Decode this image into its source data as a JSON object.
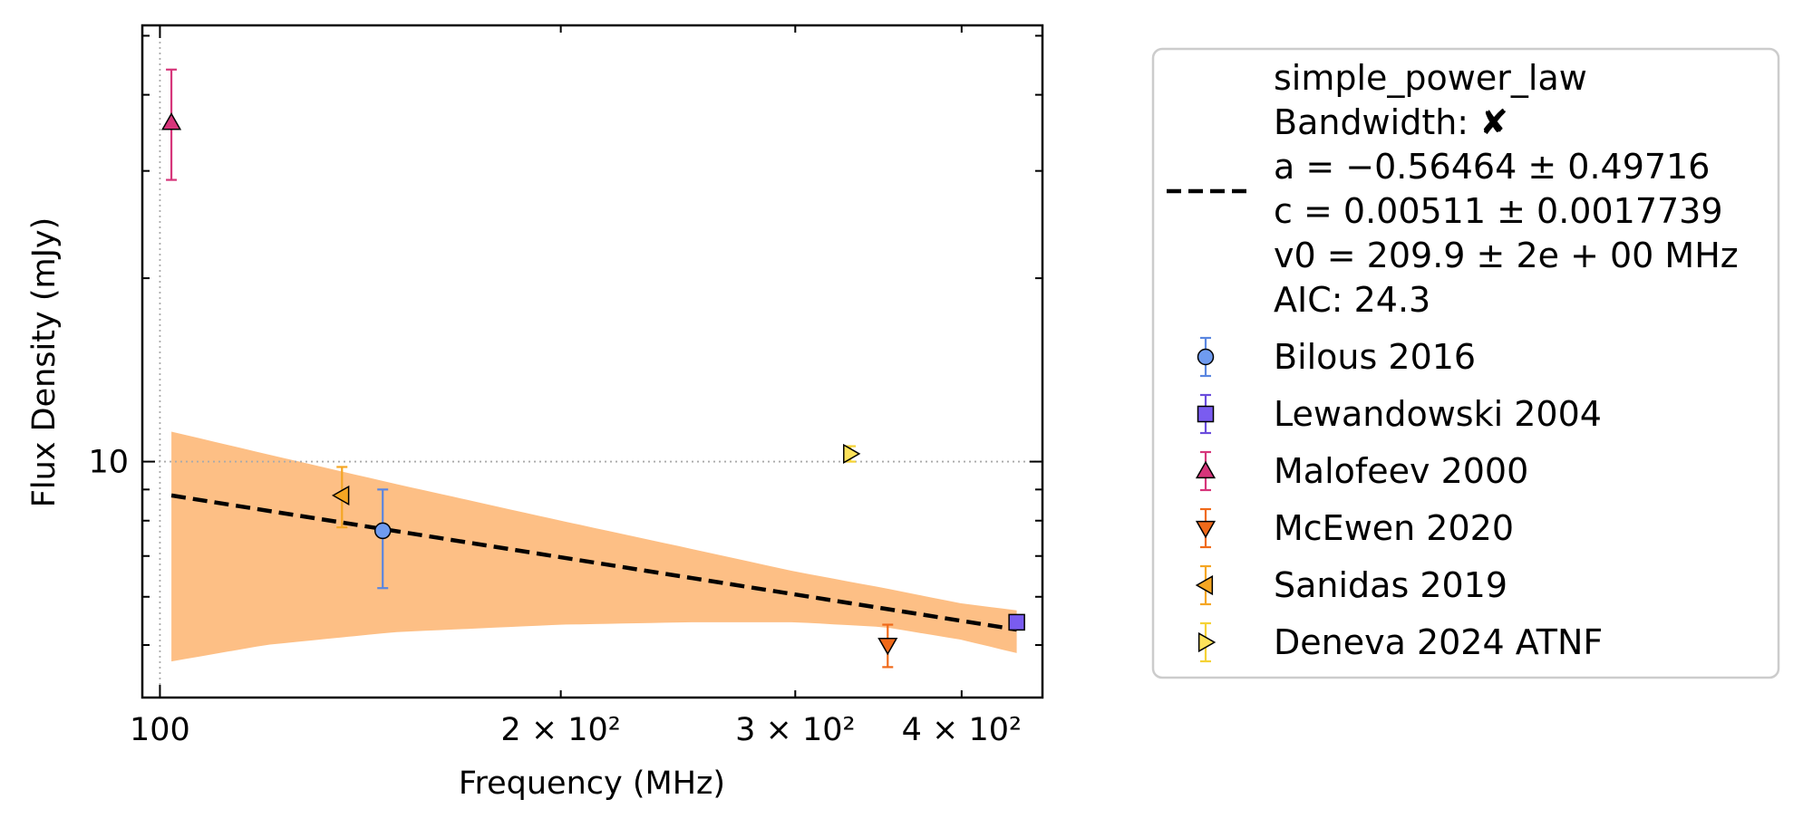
{
  "chart_data": {
    "type": "scatter",
    "title": "",
    "xlabel": "Frequency (MHz)",
    "ylabel": "Flux Density (mJy)",
    "xscale": "log",
    "yscale": "log",
    "xlim": [
      97,
      460
    ],
    "ylim": [
      4.1,
      52
    ],
    "x_tick_labels": [
      {
        "value": 100,
        "text": "100"
      },
      {
        "value": 200,
        "text": "2 × 10²"
      },
      {
        "value": 300,
        "text": "3 × 10²"
      },
      {
        "value": 400,
        "text": "4 × 10²"
      }
    ],
    "y_tick_labels": [
      {
        "value": 10,
        "text": "10"
      }
    ],
    "reference_lines": {
      "x": 100,
      "y": 10,
      "style": "dotted",
      "color": "#aaaaaa"
    },
    "fit": {
      "name": "simple_power_law",
      "style": "dashed",
      "color": "#000000",
      "x": [
        102,
        440
      ],
      "y": [
        8.8,
        5.3
      ],
      "band_color": "#fdbf85",
      "band": {
        "x": [
          102,
          120,
          150,
          200,
          250,
          300,
          350,
          400,
          440
        ],
        "y_upper": [
          11.2,
          10.3,
          9.2,
          8.0,
          7.2,
          6.6,
          6.2,
          5.85,
          5.7
        ],
        "y_lower": [
          4.7,
          5.0,
          5.25,
          5.4,
          5.45,
          5.45,
          5.35,
          5.1,
          4.85
        ]
      }
    },
    "legend": {
      "placement": "outside right",
      "fit_lines": [
        "simple_power_law",
        "Bandwidth: ✘",
        "a = −0.56464 ± 0.49716",
        "c = 0.00511 ± 0.0017739",
        "v0 = 209.9 ± 2e + 00 MHz",
        "AIC: 24.3"
      ]
    },
    "series": [
      {
        "name": "Bilous 2016",
        "marker": "circle",
        "color": "#6f9bf0",
        "edge_color": "#5a86e0",
        "x": [
          147
        ],
        "y": [
          7.7
        ],
        "err_low": [
          6.2
        ],
        "err_high": [
          9.0
        ]
      },
      {
        "name": "Lewandowski 2004",
        "marker": "square",
        "color": "#7a5cf0",
        "edge_color": "#6a4cdc",
        "x": [
          440
        ],
        "y": [
          5.45
        ],
        "err_low": [
          5.4
        ],
        "err_high": [
          5.5
        ]
      },
      {
        "name": "Malofeev 2000",
        "marker": "triangle-up",
        "color": "#d6357a",
        "edge_color": "#d6357a",
        "x": [
          102
        ],
        "y": [
          36.0
        ],
        "err_low": [
          29.0
        ],
        "err_high": [
          44.0
        ]
      },
      {
        "name": "McEwen 2020",
        "marker": "triangle-down",
        "color": "#f06a1a",
        "edge_color": "#f06a1a",
        "x": [
          352
        ],
        "y": [
          5.0
        ],
        "err_low": [
          4.6
        ],
        "err_high": [
          5.4
        ]
      },
      {
        "name": "Sanidas 2019",
        "marker": "triangle-left",
        "color": "#f5a623",
        "edge_color": "#f5a623",
        "x": [
          137
        ],
        "y": [
          8.8
        ],
        "err_low": [
          7.8
        ],
        "err_high": [
          9.8
        ]
      },
      {
        "name": "Deneva 2024 ATNF",
        "marker": "triangle-right",
        "color": "#fde25a",
        "edge_color": "#f5d235",
        "x": [
          330
        ],
        "y": [
          10.3
        ],
        "err_low": [
          10.0
        ],
        "err_high": [
          10.6
        ]
      }
    ]
  }
}
